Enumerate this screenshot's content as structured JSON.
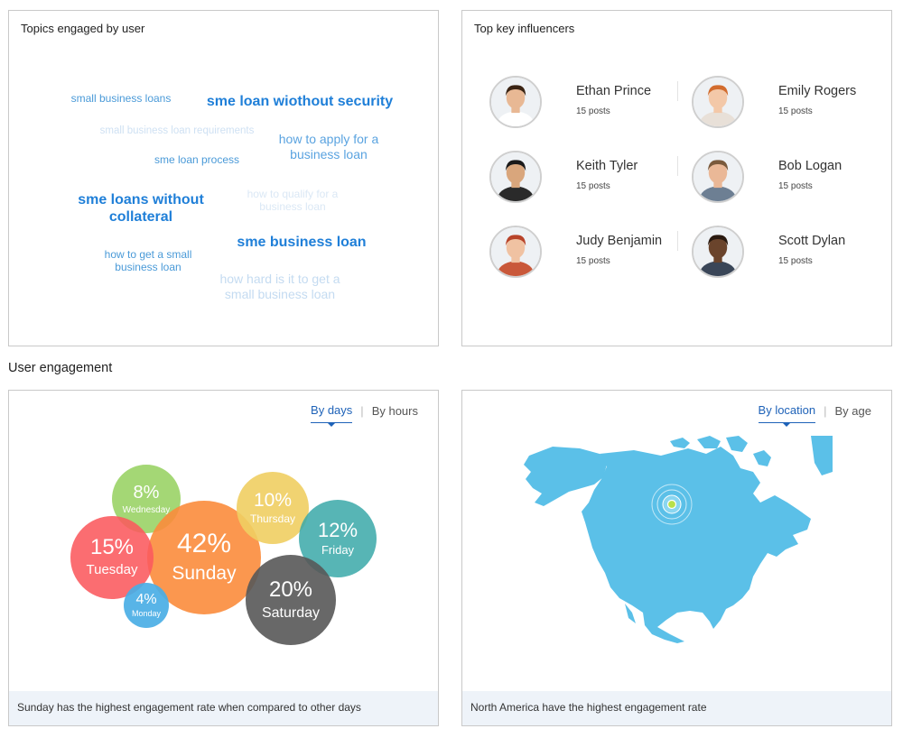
{
  "topics": {
    "title": "Topics engaged by user",
    "words": [
      {
        "text": "small business loans",
        "line2": "",
        "color": "#4a9ad8"
      },
      {
        "text": "sme loan wiothout security",
        "line2": "",
        "color": "#1f7fd8"
      },
      {
        "text": "small business loan requirements",
        "line2": "",
        "color": "#cfe1f3"
      },
      {
        "text": "how to apply for a",
        "line2": "business loan",
        "color": "#5aa3e0"
      },
      {
        "text": "sme loan process",
        "line2": "",
        "color": "#4a9ad8"
      },
      {
        "text": "sme loans without",
        "line2": "collateral",
        "color": "#1f7fd8"
      },
      {
        "text": "how to qualify for a",
        "line2": "business loan",
        "color": "#dbe8f5"
      },
      {
        "text": "sme business loan",
        "line2": "",
        "color": "#1f7fd8"
      },
      {
        "text": "how to get a small",
        "line2": "business loan",
        "color": "#4a9ad8"
      },
      {
        "text": "how hard is it to get a",
        "line2": "small business loan",
        "color": "#c4dbf1"
      }
    ]
  },
  "influencers": {
    "title": "Top key influencers",
    "people": [
      {
        "name": "Ethan Prince",
        "posts": "15 posts",
        "skin": "#e8b894",
        "hair": "#3a2414",
        "shirt": "#ffffff"
      },
      {
        "name": "Emily Rogers",
        "posts": "15 posts",
        "skin": "#f3c8a8",
        "hair": "#d26c2e",
        "shirt": "#e8e0d8"
      },
      {
        "name": "Keith Tyler",
        "posts": "15 posts",
        "skin": "#d9a67c",
        "hair": "#1a1a1a",
        "shirt": "#2a2a2a"
      },
      {
        "name": "Bob Logan",
        "posts": "15 posts",
        "skin": "#eab897",
        "hair": "#7a5a3c",
        "shirt": "#6d7f93"
      },
      {
        "name": "Judy Benjamin",
        "posts": "15 posts",
        "skin": "#f0c2a2",
        "hair": "#b8442a",
        "shirt": "#c9583a"
      },
      {
        "name": "Scott Dylan",
        "posts": "15 posts",
        "skin": "#6a442c",
        "hair": "#2a1a10",
        "shirt": "#3a4658"
      }
    ]
  },
  "engagement": {
    "section_title": "User engagement",
    "days": {
      "tabs": [
        {
          "label": "By days",
          "active": true
        },
        {
          "label": "By hours",
          "active": false
        }
      ],
      "bubbles": [
        {
          "pct": "8%",
          "day": "Wednesday",
          "color": "#9dd46a",
          "opacity": 0.92
        },
        {
          "pct": "42%",
          "day": "Sunday",
          "color": "#fb8c3c",
          "opacity": 0.9
        },
        {
          "pct": "15%",
          "day": "Tuesday",
          "color": "#fb5a5e",
          "opacity": 0.88
        },
        {
          "pct": "4%",
          "day": "Monday",
          "color": "#4aaee6",
          "opacity": 0.92
        },
        {
          "pct": "10%",
          "day": "Thursday",
          "color": "#f0cf62",
          "opacity": 0.9
        },
        {
          "pct": "12%",
          "day": "Friday",
          "color": "#3aa9a9",
          "opacity": 0.85
        },
        {
          "pct": "20%",
          "day": "Saturday",
          "color": "#585858",
          "opacity": 0.9
        }
      ],
      "footer": "Sunday has the highest engagement rate when compared to other days"
    },
    "location": {
      "tabs": [
        {
          "label": "By location",
          "active": true
        },
        {
          "label": "By age",
          "active": false
        }
      ],
      "map_color": "#5bc0e8",
      "marker_color": "#b8e04a",
      "footer": "North America have the highest engagement rate"
    }
  }
}
